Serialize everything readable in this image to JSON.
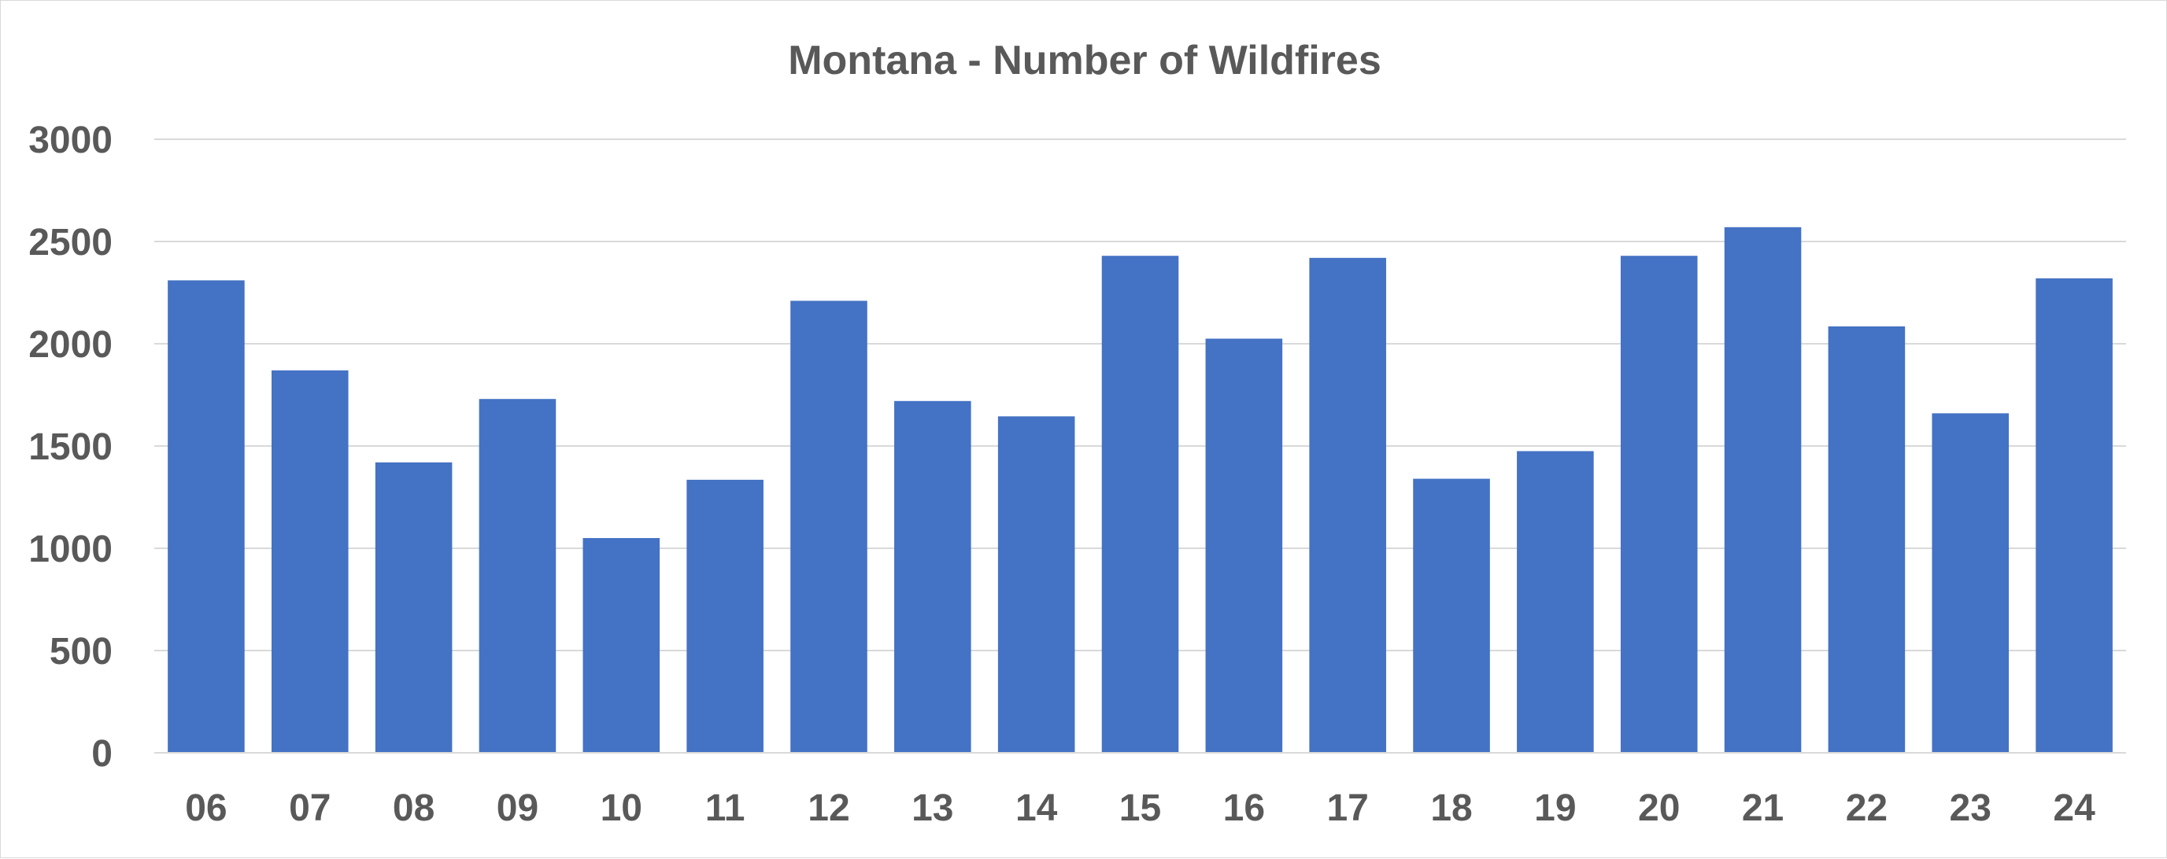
{
  "chart_data": {
    "type": "bar",
    "title": "Montana - Number of Wildfires",
    "xlabel": "",
    "ylabel": "",
    "categories": [
      "06",
      "07",
      "08",
      "09",
      "10",
      "11",
      "12",
      "13",
      "14",
      "15",
      "16",
      "17",
      "18",
      "19",
      "20",
      "21",
      "22",
      "23",
      "24"
    ],
    "series": [
      {
        "values": [
          2310,
          1870,
          1420,
          1730,
          1050,
          1335,
          2210,
          1720,
          1645,
          2430,
          2025,
          2420,
          1340,
          1475,
          2430,
          2570,
          2085,
          1660,
          2320
        ]
      }
    ],
    "ylim": [
      0,
      3000
    ],
    "yticks": [
      0,
      500,
      1000,
      1500,
      2000,
      2500,
      3000
    ],
    "grid": true,
    "legend": "none",
    "colors": {
      "bar": "#4472C4",
      "grid": "#D9D9D9",
      "text": "#595959"
    }
  }
}
